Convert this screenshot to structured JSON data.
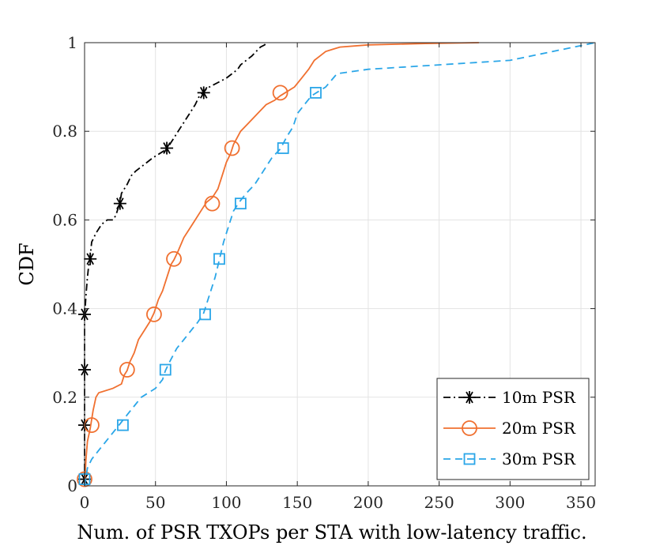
{
  "chart_data": {
    "type": "line",
    "title": "",
    "xlabel": "Num. of PSR TXOPs per STA with low-latency traffic.",
    "ylabel": "CDF",
    "xlim": [
      0,
      360
    ],
    "ylim": [
      0,
      1
    ],
    "xticks": [
      0,
      50,
      100,
      150,
      200,
      250,
      300,
      350
    ],
    "yticks": [
      0,
      0.2,
      0.4,
      0.6,
      0.8,
      1
    ],
    "xtick_labels": [
      "0",
      "50",
      "100",
      "150",
      "200",
      "250",
      "300",
      "350"
    ],
    "ytick_labels": [
      "0",
      "0.2",
      "0.4",
      "0.6",
      "0.8",
      "1"
    ],
    "grid": true,
    "legend_position": "bottom-right",
    "series": [
      {
        "name": "10m PSR",
        "color": "#000000",
        "line_style": "dashdot",
        "marker": "asterisk",
        "x": [
          0,
          0,
          0,
          0,
          0,
          1,
          2,
          3,
          4,
          5,
          8,
          12,
          16,
          20,
          22,
          25,
          26,
          30,
          33,
          36,
          40,
          44,
          48,
          53,
          58,
          62,
          66,
          70,
          74,
          78,
          81,
          84,
          88,
          94,
          100,
          104,
          108,
          110,
          114,
          118,
          121,
          124,
          127,
          128
        ],
        "y": [
          0,
          0.06,
          0.14,
          0.26,
          0.38,
          0.43,
          0.47,
          0.5,
          0.52,
          0.55,
          0.57,
          0.59,
          0.6,
          0.6,
          0.61,
          0.64,
          0.66,
          0.68,
          0.7,
          0.71,
          0.72,
          0.73,
          0.74,
          0.75,
          0.76,
          0.78,
          0.8,
          0.82,
          0.84,
          0.86,
          0.88,
          0.89,
          0.9,
          0.91,
          0.92,
          0.93,
          0.94,
          0.95,
          0.96,
          0.97,
          0.98,
          0.99,
          0.995,
          1.0
        ],
        "marker_points": [
          [
            0,
            0.015
          ],
          [
            0,
            0.137
          ],
          [
            0,
            0.262
          ],
          [
            0,
            0.387
          ],
          [
            4,
            0.512
          ],
          [
            25,
            0.637
          ],
          [
            58,
            0.762
          ],
          [
            84,
            0.887
          ]
        ]
      },
      {
        "name": "20m PSR",
        "color": "#f07030",
        "line_style": "solid",
        "marker": "circle",
        "x": [
          0,
          1,
          2,
          4,
          6,
          8,
          10,
          20,
          26,
          28,
          30,
          32,
          35,
          38,
          42,
          46,
          49,
          52,
          55,
          58,
          61,
          63,
          66,
          70,
          74,
          78,
          82,
          86,
          90,
          94,
          97,
          100,
          103,
          105,
          110,
          116,
          122,
          128,
          134,
          138,
          143,
          148,
          153,
          158,
          162,
          166,
          170,
          175,
          180,
          200,
          240,
          278
        ],
        "y": [
          0,
          0.06,
          0.1,
          0.13,
          0.17,
          0.2,
          0.21,
          0.22,
          0.23,
          0.25,
          0.26,
          0.28,
          0.3,
          0.33,
          0.35,
          0.37,
          0.39,
          0.42,
          0.44,
          0.47,
          0.5,
          0.51,
          0.53,
          0.56,
          0.58,
          0.6,
          0.62,
          0.64,
          0.65,
          0.67,
          0.7,
          0.73,
          0.75,
          0.77,
          0.8,
          0.82,
          0.84,
          0.86,
          0.87,
          0.88,
          0.89,
          0.9,
          0.92,
          0.94,
          0.96,
          0.97,
          0.98,
          0.985,
          0.99,
          0.995,
          0.998,
          1.0
        ],
        "marker_points": [
          [
            0,
            0.015
          ],
          [
            5,
            0.137
          ],
          [
            30,
            0.262
          ],
          [
            49,
            0.387
          ],
          [
            63,
            0.512
          ],
          [
            90,
            0.637
          ],
          [
            104,
            0.762
          ],
          [
            138,
            0.887
          ]
        ]
      },
      {
        "name": "30m PSR",
        "color": "#2aa6e8",
        "line_style": "dashed",
        "marker": "square",
        "x": [
          0,
          2,
          5,
          10,
          15,
          20,
          25,
          30,
          35,
          40,
          45,
          50,
          55,
          57,
          60,
          65,
          70,
          75,
          80,
          84,
          88,
          92,
          95,
          98,
          102,
          105,
          109,
          114,
          120,
          126,
          132,
          138,
          143,
          147,
          150,
          155,
          160,
          165,
          170,
          178,
          200,
          250,
          300,
          345,
          360
        ],
        "y": [
          0,
          0.04,
          0.06,
          0.08,
          0.1,
          0.12,
          0.14,
          0.16,
          0.18,
          0.2,
          0.21,
          0.22,
          0.24,
          0.26,
          0.28,
          0.31,
          0.33,
          0.35,
          0.37,
          0.39,
          0.43,
          0.47,
          0.51,
          0.55,
          0.59,
          0.62,
          0.64,
          0.66,
          0.68,
          0.71,
          0.74,
          0.76,
          0.79,
          0.81,
          0.84,
          0.86,
          0.88,
          0.89,
          0.9,
          0.93,
          0.94,
          0.95,
          0.96,
          0.99,
          1.0
        ],
        "marker_points": [
          [
            0,
            0.015
          ],
          [
            27,
            0.137
          ],
          [
            57,
            0.262
          ],
          [
            85,
            0.387
          ],
          [
            95,
            0.512
          ],
          [
            110,
            0.637
          ],
          [
            140,
            0.762
          ],
          [
            163,
            0.887
          ]
        ]
      }
    ]
  }
}
